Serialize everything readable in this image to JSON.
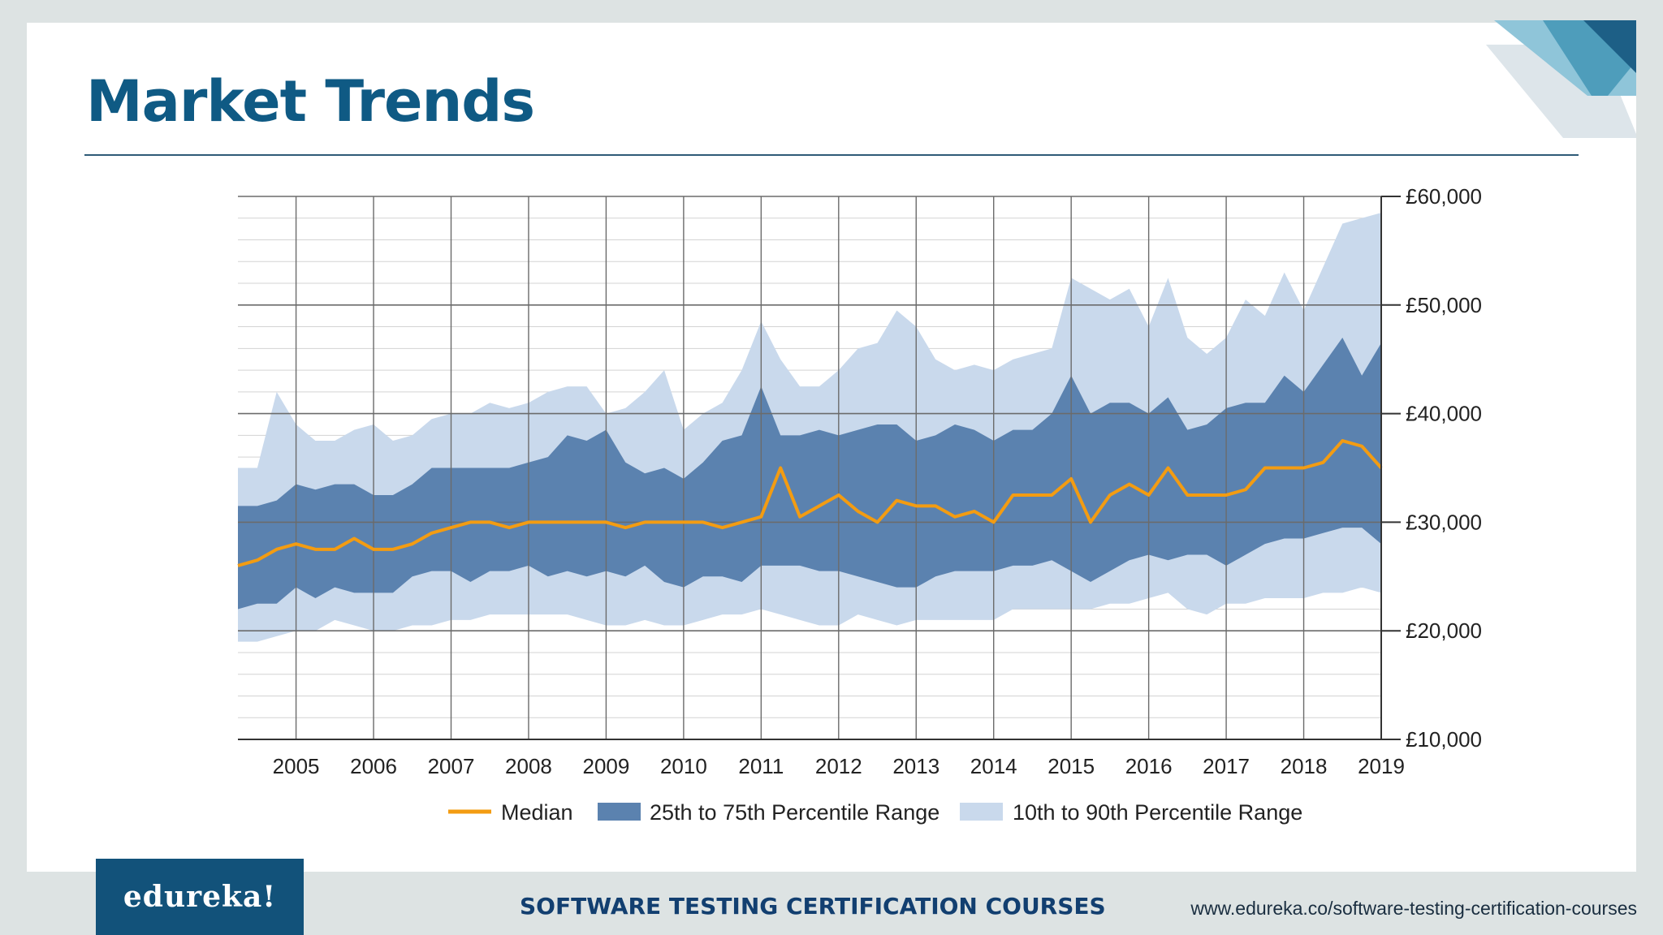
{
  "slide": {
    "title": "Market Trends",
    "logo_text": "edureka!",
    "course_text": "SOFTWARE TESTING CERTIFICATION COURSES",
    "url_text": "www.edureka.co/software-testing-certification-courses"
  },
  "colors": {
    "title": "#0f5a84",
    "median": "#f39c12",
    "band_25_75": "#5b82af",
    "band_10_90": "#c9d9ec",
    "logo_bg": "#12527a"
  },
  "chart_data": {
    "type": "area",
    "title": "",
    "xlabel": "",
    "ylabel": "",
    "y_axis_position": "right",
    "ylim": [
      10000,
      60000
    ],
    "xlim": [
      2004.25,
      2019.0
    ],
    "y_ticks": [
      10000,
      20000,
      30000,
      40000,
      50000,
      60000
    ],
    "y_tick_labels": [
      "£10,000",
      "£20,000",
      "£30,000",
      "£40,000",
      "£50,000",
      "£60,000"
    ],
    "x_ticks": [
      2005,
      2006,
      2007,
      2008,
      2009,
      2010,
      2011,
      2012,
      2013,
      2014,
      2015,
      2016,
      2017,
      2018,
      2019
    ],
    "x_tick_labels": [
      "2005",
      "2006",
      "2007",
      "2008",
      "2009",
      "2010",
      "2011",
      "2012",
      "2013",
      "2014",
      "2015",
      "2016",
      "2017",
      "2018",
      "2019"
    ],
    "grid": true,
    "legend_position": "bottom",
    "x": [
      2004.25,
      2004.5,
      2004.75,
      2005.0,
      2005.25,
      2005.5,
      2005.75,
      2006.0,
      2006.25,
      2006.5,
      2006.75,
      2007.0,
      2007.25,
      2007.5,
      2007.75,
      2008.0,
      2008.25,
      2008.5,
      2008.75,
      2009.0,
      2009.25,
      2009.5,
      2009.75,
      2010.0,
      2010.25,
      2010.5,
      2010.75,
      2011.0,
      2011.25,
      2011.5,
      2011.75,
      2012.0,
      2012.25,
      2012.5,
      2012.75,
      2013.0,
      2013.25,
      2013.5,
      2013.75,
      2014.0,
      2014.25,
      2014.5,
      2014.75,
      2015.0,
      2015.25,
      2015.5,
      2015.75,
      2016.0,
      2016.25,
      2016.5,
      2016.75,
      2017.0,
      2017.25,
      2017.5,
      2017.75,
      2018.0,
      2018.25,
      2018.5,
      2018.75,
      2019.0
    ],
    "series": [
      {
        "name": "Median",
        "kind": "line",
        "values": [
          26000,
          26500,
          27500,
          28000,
          27500,
          27500,
          28500,
          27500,
          27500,
          28000,
          29000,
          29500,
          30000,
          30000,
          29500,
          30000,
          30000,
          30000,
          30000,
          30000,
          29500,
          30000,
          30000,
          30000,
          30000,
          29500,
          30000,
          30500,
          35000,
          30500,
          31500,
          32500,
          31000,
          30000,
          32000,
          31500,
          31500,
          30500,
          31000,
          30000,
          32500,
          32500,
          32500,
          34000,
          30000,
          32500,
          33500,
          32500,
          35000,
          32500,
          32500,
          32500,
          33000,
          35000,
          35000,
          35000,
          35500,
          37500,
          37000,
          35000
        ]
      },
      {
        "name": "25th to 75th Percentile Range",
        "kind": "band",
        "lower": [
          22000,
          22500,
          22500,
          24000,
          23000,
          24000,
          23500,
          23500,
          23500,
          25000,
          25500,
          25500,
          24500,
          25500,
          25500,
          26000,
          25000,
          25500,
          25000,
          25500,
          25000,
          26000,
          24500,
          24000,
          25000,
          25000,
          24500,
          26000,
          26000,
          26000,
          25500,
          25500,
          25000,
          24500,
          24000,
          24000,
          25000,
          25500,
          25500,
          25500,
          26000,
          26000,
          26500,
          25500,
          24500,
          25500,
          26500,
          27000,
          26500,
          27000,
          27000,
          26000,
          27000,
          28000,
          28500,
          28500,
          29000,
          29500,
          29500,
          28000
        ],
        "upper": [
          31500,
          31500,
          32000,
          33500,
          33000,
          33500,
          33500,
          32500,
          32500,
          33500,
          35000,
          35000,
          35000,
          35000,
          35000,
          35500,
          36000,
          38000,
          37500,
          38500,
          35500,
          34500,
          35000,
          34000,
          35500,
          37500,
          38000,
          42500,
          38000,
          38000,
          38500,
          38000,
          38500,
          39000,
          39000,
          37500,
          38000,
          39000,
          38500,
          37500,
          38500,
          38500,
          40000,
          43500,
          40000,
          41000,
          41000,
          40000,
          41500,
          38500,
          39000,
          40500,
          41000,
          41000,
          43500,
          42000,
          44500,
          47000,
          43500,
          46500
        ]
      },
      {
        "name": "10th to 90th Percentile Range",
        "kind": "band",
        "lower": [
          19000,
          19000,
          19500,
          20000,
          20000,
          21000,
          20500,
          20000,
          20000,
          20500,
          20500,
          21000,
          21000,
          21500,
          21500,
          21500,
          21500,
          21500,
          21000,
          20500,
          20500,
          21000,
          20500,
          20500,
          21000,
          21500,
          21500,
          22000,
          21500,
          21000,
          20500,
          20500,
          21500,
          21000,
          20500,
          21000,
          21000,
          21000,
          21000,
          21000,
          22000,
          22000,
          22000,
          22000,
          22000,
          22500,
          22500,
          23000,
          23500,
          22000,
          21500,
          22500,
          22500,
          23000,
          23000,
          23000,
          23500,
          23500,
          24000,
          23500
        ],
        "upper": [
          35000,
          35000,
          42000,
          39000,
          37500,
          37500,
          38500,
          39000,
          37500,
          38000,
          39500,
          40000,
          40000,
          41000,
          40500,
          41000,
          42000,
          42500,
          42500,
          40000,
          40500,
          42000,
          44000,
          38500,
          40000,
          41000,
          44000,
          48500,
          45000,
          42500,
          42500,
          44000,
          46000,
          46500,
          49500,
          48000,
          45000,
          44000,
          44500,
          44000,
          45000,
          45500,
          46000,
          52500,
          51500,
          50500,
          51500,
          48000,
          52500,
          47000,
          45500,
          47000,
          50500,
          49000,
          53000,
          49500,
          53500,
          57500,
          58000,
          58500
        ]
      }
    ]
  }
}
